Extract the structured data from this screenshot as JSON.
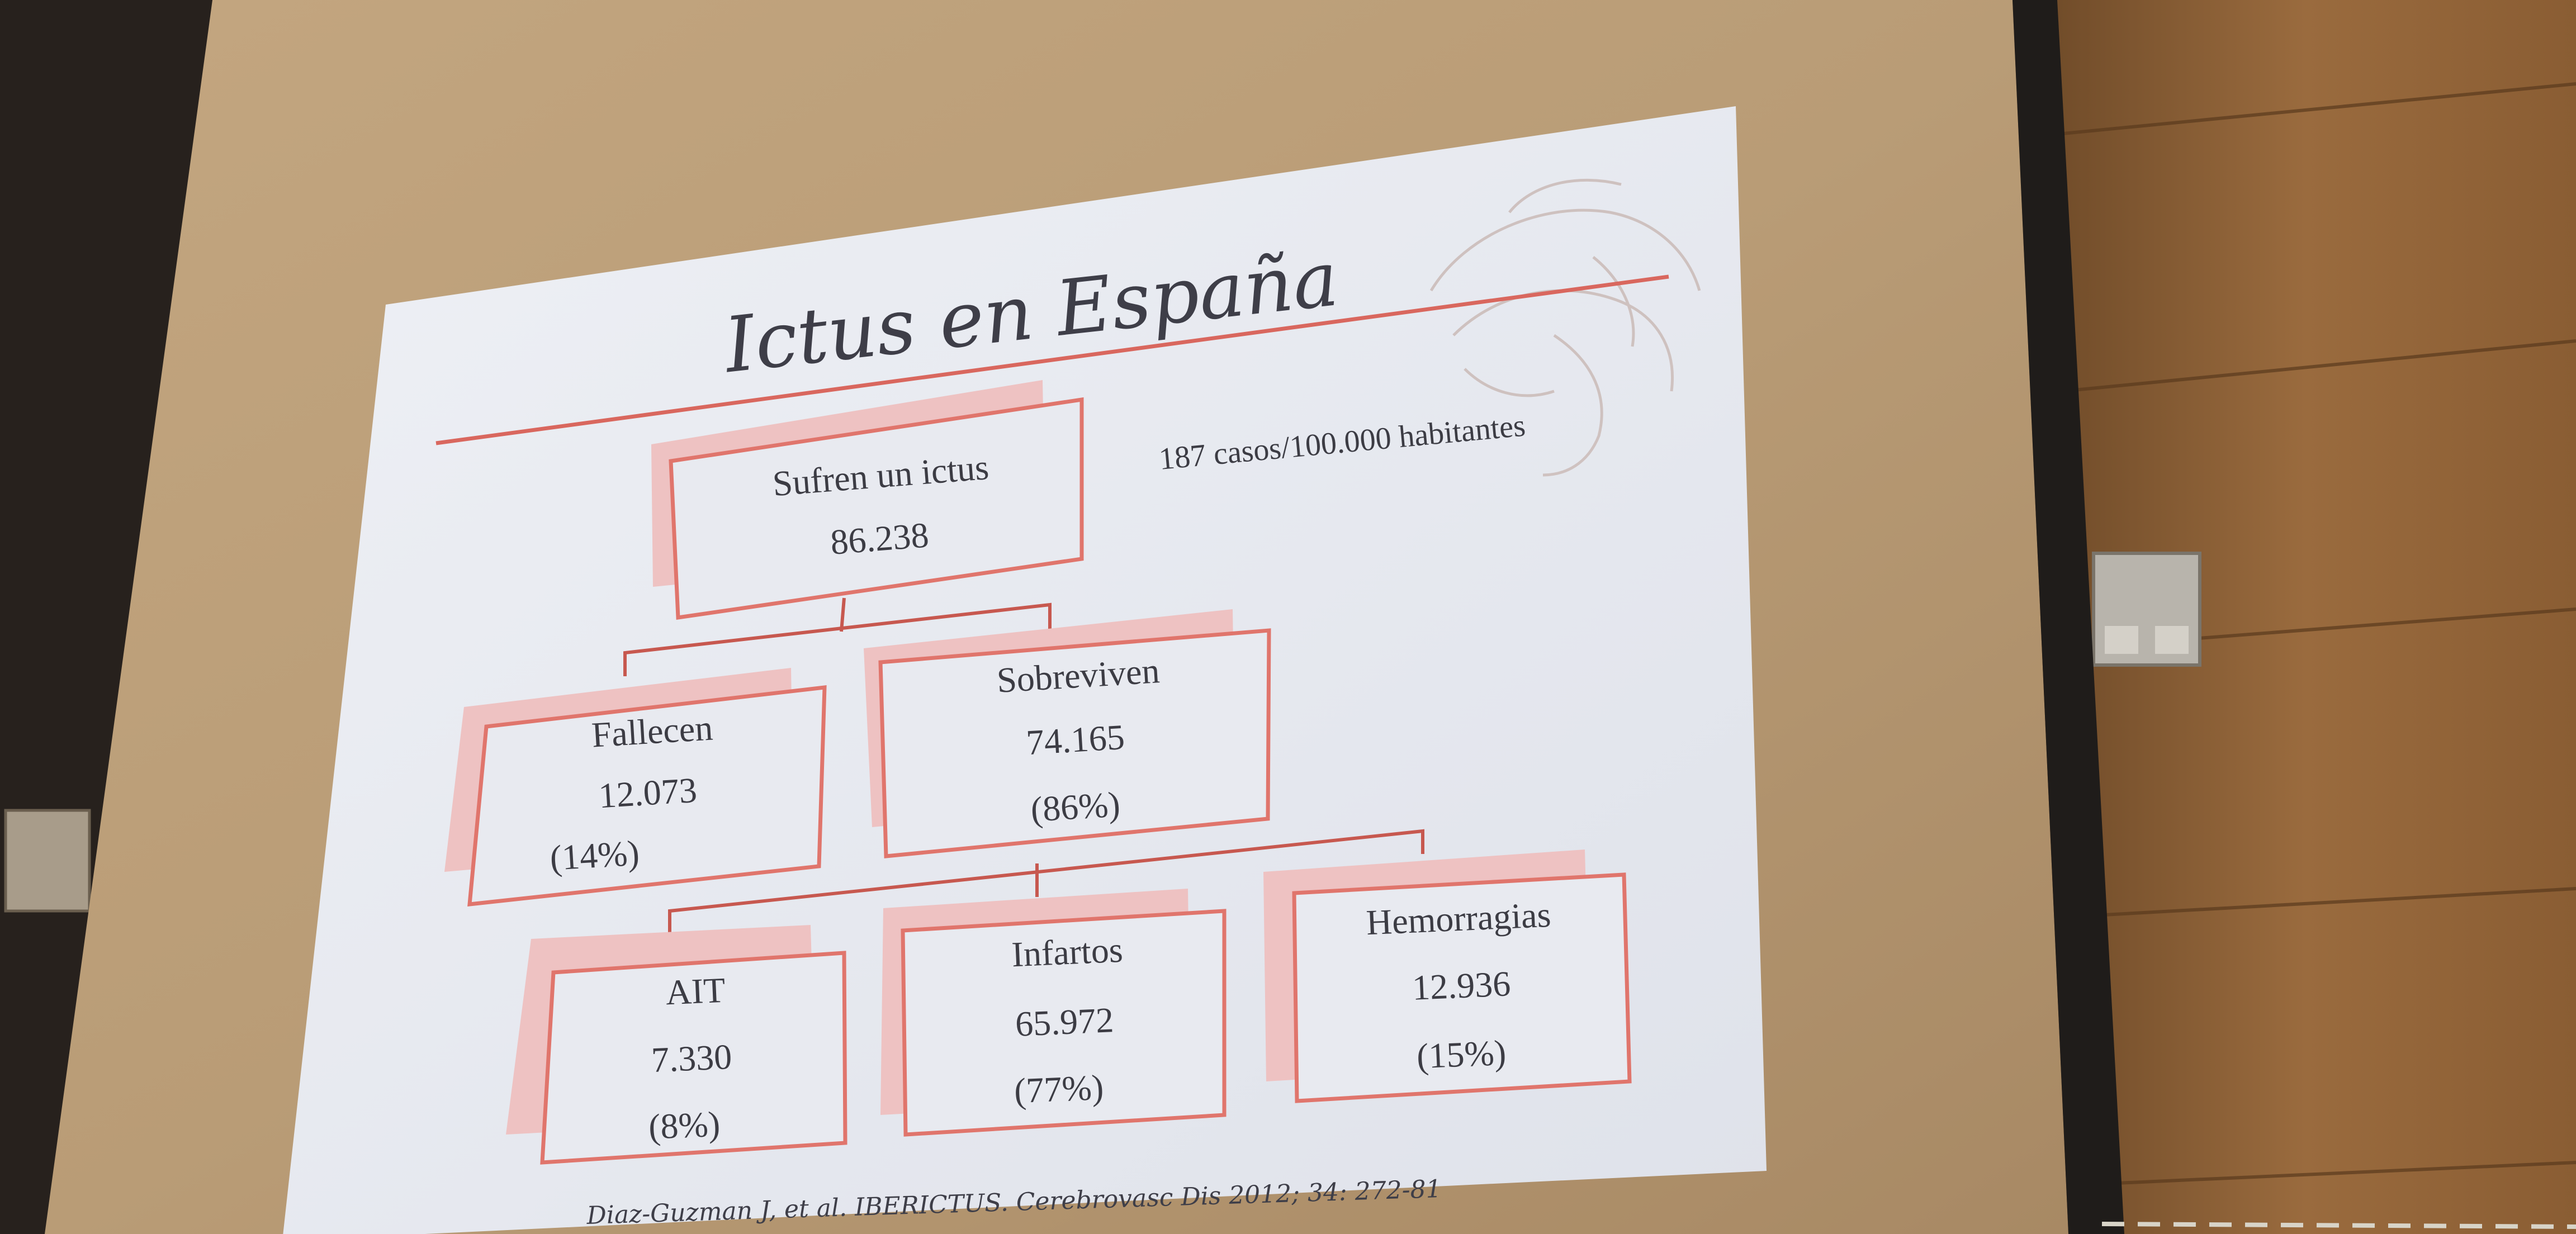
{
  "slide": {
    "title": "Ictus en España",
    "incidence_note": "187 casos/100.000 habitantes",
    "citation": "Diaz-Guzman J, et al. IBERICTUS. Cerebrovasc Dis 2012; 34: 272-81"
  },
  "nodes": {
    "suffer": {
      "label": "Sufren un ictus",
      "value": "86.238"
    },
    "die": {
      "label": "Fallecen",
      "value": "12.073",
      "percent": "(14%)"
    },
    "survive": {
      "label": "Sobreviven",
      "value": "74.165",
      "percent": "(86%)"
    },
    "ait": {
      "label": "AIT",
      "value": "7.330",
      "percent": "(8%)"
    },
    "infarcts": {
      "label": "Infartos",
      "value": "65.972",
      "percent": "(77%)"
    },
    "hemorrhages": {
      "label": "Hemorragias",
      "value": "12.936",
      "percent": "(15%)"
    }
  },
  "colors": {
    "accent_line": "#d9675e",
    "box_border": "#e0756c",
    "box_shadow": "#eec2c2",
    "slide_bg": "#e6e8ee",
    "screen": "#b89a74",
    "wall_wood": "#9a6a3a",
    "left_dark": "#2a2624"
  }
}
